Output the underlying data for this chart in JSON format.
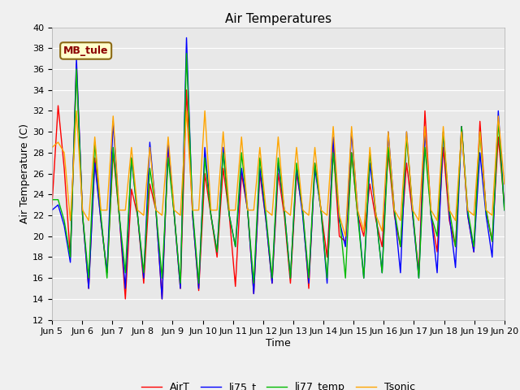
{
  "title": "Air Temperatures",
  "xlabel": "Time",
  "ylabel": "Air Temperature (C)",
  "ylim": [
    12,
    40
  ],
  "yticks": [
    12,
    14,
    16,
    18,
    20,
    22,
    24,
    26,
    28,
    30,
    32,
    34,
    36,
    38,
    40
  ],
  "xtick_labels": [
    "Jun 5",
    "Jun 6",
    "Jun 7",
    "Jun 8",
    "Jun 9",
    "Jun 10",
    "Jun 11",
    "Jun 12",
    "Jun 13",
    "Jun 14",
    "Jun 15",
    "Jun 16",
    "Jun 17",
    "Jun 18",
    "Jun 19",
    "Jun 20"
  ],
  "annotation_text": "MB_tule",
  "colors": {
    "AirT": "#ff0000",
    "li75_t": "#0000ff",
    "li77_temp": "#00bb00",
    "Tsonic": "#ffa500"
  },
  "fig_facecolor": "#f0f0f0",
  "ax_facecolor": "#e8e8e8",
  "grid_color": "#ffffff",
  "title_fontsize": 11,
  "axis_fontsize": 9,
  "tick_fontsize": 8,
  "legend_fontsize": 9,
  "linewidth": 1.0,
  "AirT": [
    23.0,
    32.5,
    26.5,
    18.0,
    36.5,
    22.0,
    15.0,
    27.5,
    21.5,
    16.5,
    28.0,
    22.0,
    14.0,
    24.5,
    22.0,
    15.5,
    25.0,
    22.5,
    14.0,
    28.5,
    22.0,
    15.0,
    34.0,
    22.0,
    14.8,
    26.0,
    22.0,
    18.0,
    26.5,
    22.0,
    15.2,
    26.0,
    22.5,
    14.5,
    26.0,
    21.5,
    15.5,
    26.0,
    22.0,
    15.5,
    26.0,
    22.5,
    15.0,
    27.0,
    22.5,
    18.0,
    28.5,
    20.0,
    19.5,
    28.0,
    22.0,
    20.0,
    25.0,
    21.5,
    19.0,
    28.0,
    22.0,
    19.0,
    27.0,
    22.0,
    16.5,
    32.0,
    22.0,
    18.5,
    28.5,
    21.5,
    19.0,
    30.5,
    22.0,
    18.5,
    31.0,
    22.5,
    19.5,
    29.5,
    23.0
  ],
  "li75_t": [
    22.5,
    23.0,
    21.0,
    17.5,
    37.0,
    22.0,
    15.0,
    27.0,
    21.5,
    16.5,
    31.0,
    22.0,
    15.0,
    27.5,
    22.0,
    16.0,
    29.0,
    22.5,
    14.0,
    29.0,
    22.0,
    15.0,
    39.0,
    22.0,
    15.0,
    28.5,
    22.0,
    18.5,
    28.5,
    22.0,
    19.0,
    26.5,
    22.5,
    14.5,
    26.5,
    21.5,
    15.5,
    27.0,
    22.5,
    16.0,
    26.5,
    22.0,
    15.5,
    26.5,
    22.5,
    15.5,
    29.5,
    21.5,
    19.0,
    30.0,
    22.5,
    16.0,
    27.0,
    22.0,
    16.5,
    30.0,
    22.5,
    16.5,
    30.0,
    22.0,
    16.0,
    30.0,
    22.0,
    16.5,
    30.0,
    22.0,
    17.0,
    30.5,
    22.0,
    18.5,
    28.0,
    22.0,
    18.0,
    32.0,
    22.5
  ],
  "li77_temp": [
    23.5,
    23.5,
    21.5,
    18.0,
    36.0,
    22.0,
    16.0,
    29.0,
    22.0,
    16.0,
    28.5,
    22.0,
    16.5,
    27.5,
    22.0,
    16.5,
    26.5,
    22.5,
    16.0,
    27.5,
    22.0,
    15.5,
    37.5,
    22.5,
    15.5,
    27.5,
    22.0,
    18.5,
    28.0,
    22.0,
    19.0,
    28.0,
    22.5,
    15.5,
    27.5,
    22.0,
    16.0,
    27.5,
    22.5,
    16.0,
    27.0,
    22.5,
    16.0,
    27.0,
    22.5,
    16.0,
    28.0,
    22.0,
    16.0,
    28.0,
    22.0,
    16.0,
    28.0,
    22.0,
    16.5,
    28.5,
    22.5,
    19.0,
    29.5,
    22.5,
    16.0,
    28.5,
    22.0,
    20.0,
    30.0,
    22.5,
    19.0,
    30.5,
    22.5,
    19.0,
    30.0,
    22.5,
    19.5,
    31.0,
    22.5
  ],
  "Tsonic": [
    28.5,
    29.0,
    28.0,
    21.5,
    32.0,
    22.5,
    21.5,
    29.5,
    22.5,
    22.5,
    31.5,
    22.5,
    22.5,
    28.5,
    22.5,
    22.0,
    28.5,
    22.5,
    22.0,
    29.5,
    22.5,
    22.0,
    32.0,
    22.5,
    22.5,
    32.0,
    22.5,
    22.5,
    30.0,
    22.5,
    22.5,
    29.5,
    22.5,
    22.5,
    28.5,
    22.5,
    22.0,
    29.5,
    22.5,
    22.0,
    28.5,
    22.5,
    22.0,
    28.5,
    22.5,
    22.0,
    30.5,
    22.0,
    20.0,
    30.5,
    22.5,
    20.5,
    28.5,
    22.0,
    20.5,
    30.0,
    22.5,
    21.5,
    30.0,
    22.5,
    21.5,
    30.5,
    22.5,
    21.5,
    30.5,
    22.5,
    21.5,
    30.0,
    22.5,
    22.0,
    30.0,
    22.5,
    22.0,
    31.5,
    25.0
  ]
}
